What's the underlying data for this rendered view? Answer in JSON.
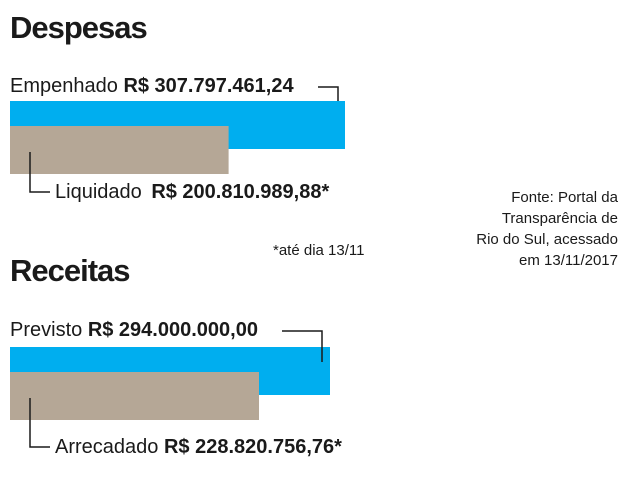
{
  "sections": [
    {
      "title": "Despesas",
      "bars": [
        {
          "name": "Empenhado",
          "value_text": "R$ 307.797.461,24",
          "suffix": "",
          "value": 307797461.24,
          "color": "#00AEEF"
        },
        {
          "name": "Liquidado",
          "value_text": "R$ 200.810.989,88",
          "suffix": "*",
          "value": 200810989.88,
          "color": "#B5A796"
        }
      ],
      "note": "*até dia 13/11"
    },
    {
      "title": "Receitas",
      "bars": [
        {
          "name": "Previsto",
          "value_text": "R$ 294.000.000,00",
          "suffix": "",
          "value": 294000000.0,
          "color": "#00AEEF"
        },
        {
          "name": "Arrecadado",
          "value_text": "R$ 228.820.756,76",
          "suffix": "*",
          "value": 228820756.76,
          "color": "#B5A796"
        }
      ]
    }
  ],
  "source_lines": [
    "Fonte: Portal da",
    "Transparência de",
    "Rio do Sul, acessado",
    "em 13/11/2017"
  ],
  "colors": {
    "planned": "#00AEEF",
    "realized": "#B5A796",
    "text": "#1a1a1a"
  },
  "chart_data": [
    {
      "type": "bar",
      "title": "Despesas",
      "categories": [
        "Empenhado",
        "Liquidado"
      ],
      "values": [
        307797461.24,
        200810989.88
      ],
      "orientation": "horizontal",
      "xlabel": "",
      "ylabel": ""
    },
    {
      "type": "bar",
      "title": "Receitas",
      "categories": [
        "Previsto",
        "Arrecadado"
      ],
      "values": [
        294000000.0,
        228820756.76
      ],
      "orientation": "horizontal",
      "xlabel": "",
      "ylabel": ""
    }
  ]
}
